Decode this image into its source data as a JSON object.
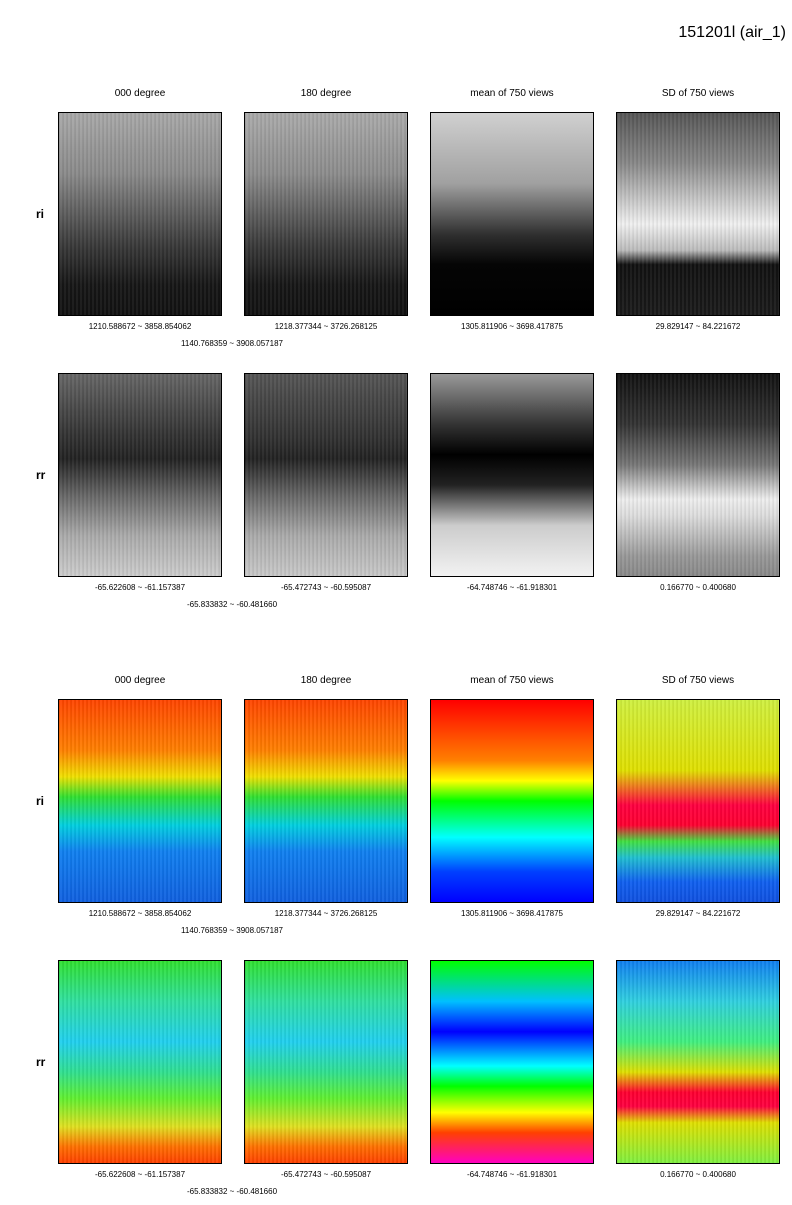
{
  "title": "151201l (air_1)",
  "blocks": [
    {
      "columns": [
        "000 degree",
        "180 degree",
        "mean of 750 views",
        "SD of 750 views"
      ],
      "rows": [
        {
          "label": "ri",
          "ranges": [
            "1210.588672 ~ 3858.854062",
            "1218.377344 ~ 3726.268125",
            "1305.811906 ~ 3698.417875",
            "29.829147 ~ 84.221672"
          ],
          "combined": "1140.768359 ~ 3908.057187"
        },
        {
          "label": "rr",
          "ranges": [
            "-65.622608 ~ -61.157387",
            "-65.472743 ~ -60.595087",
            "-64.748746 ~ -61.918301",
            "0.166770 ~ 0.400680"
          ],
          "combined": "-65.833832 ~ -60.481660"
        }
      ]
    },
    {
      "columns": [
        "000 degree",
        "180 degree",
        "mean of 750 views",
        "SD of 750 views"
      ],
      "rows": [
        {
          "label": "ri",
          "ranges": [
            "1210.588672 ~ 3858.854062",
            "1218.377344 ~ 3726.268125",
            "1305.811906 ~ 3698.417875",
            "29.829147 ~ 84.221672"
          ],
          "combined": "1140.768359 ~ 3908.057187"
        },
        {
          "label": "rr",
          "ranges": [
            "-65.622608 ~ -61.157387",
            "-65.472743 ~ -60.595087",
            "-64.748746 ~ -61.918301",
            "0.166770 ~ 0.400680"
          ],
          "combined": "-65.833832 ~ -60.481660"
        }
      ]
    }
  ]
}
